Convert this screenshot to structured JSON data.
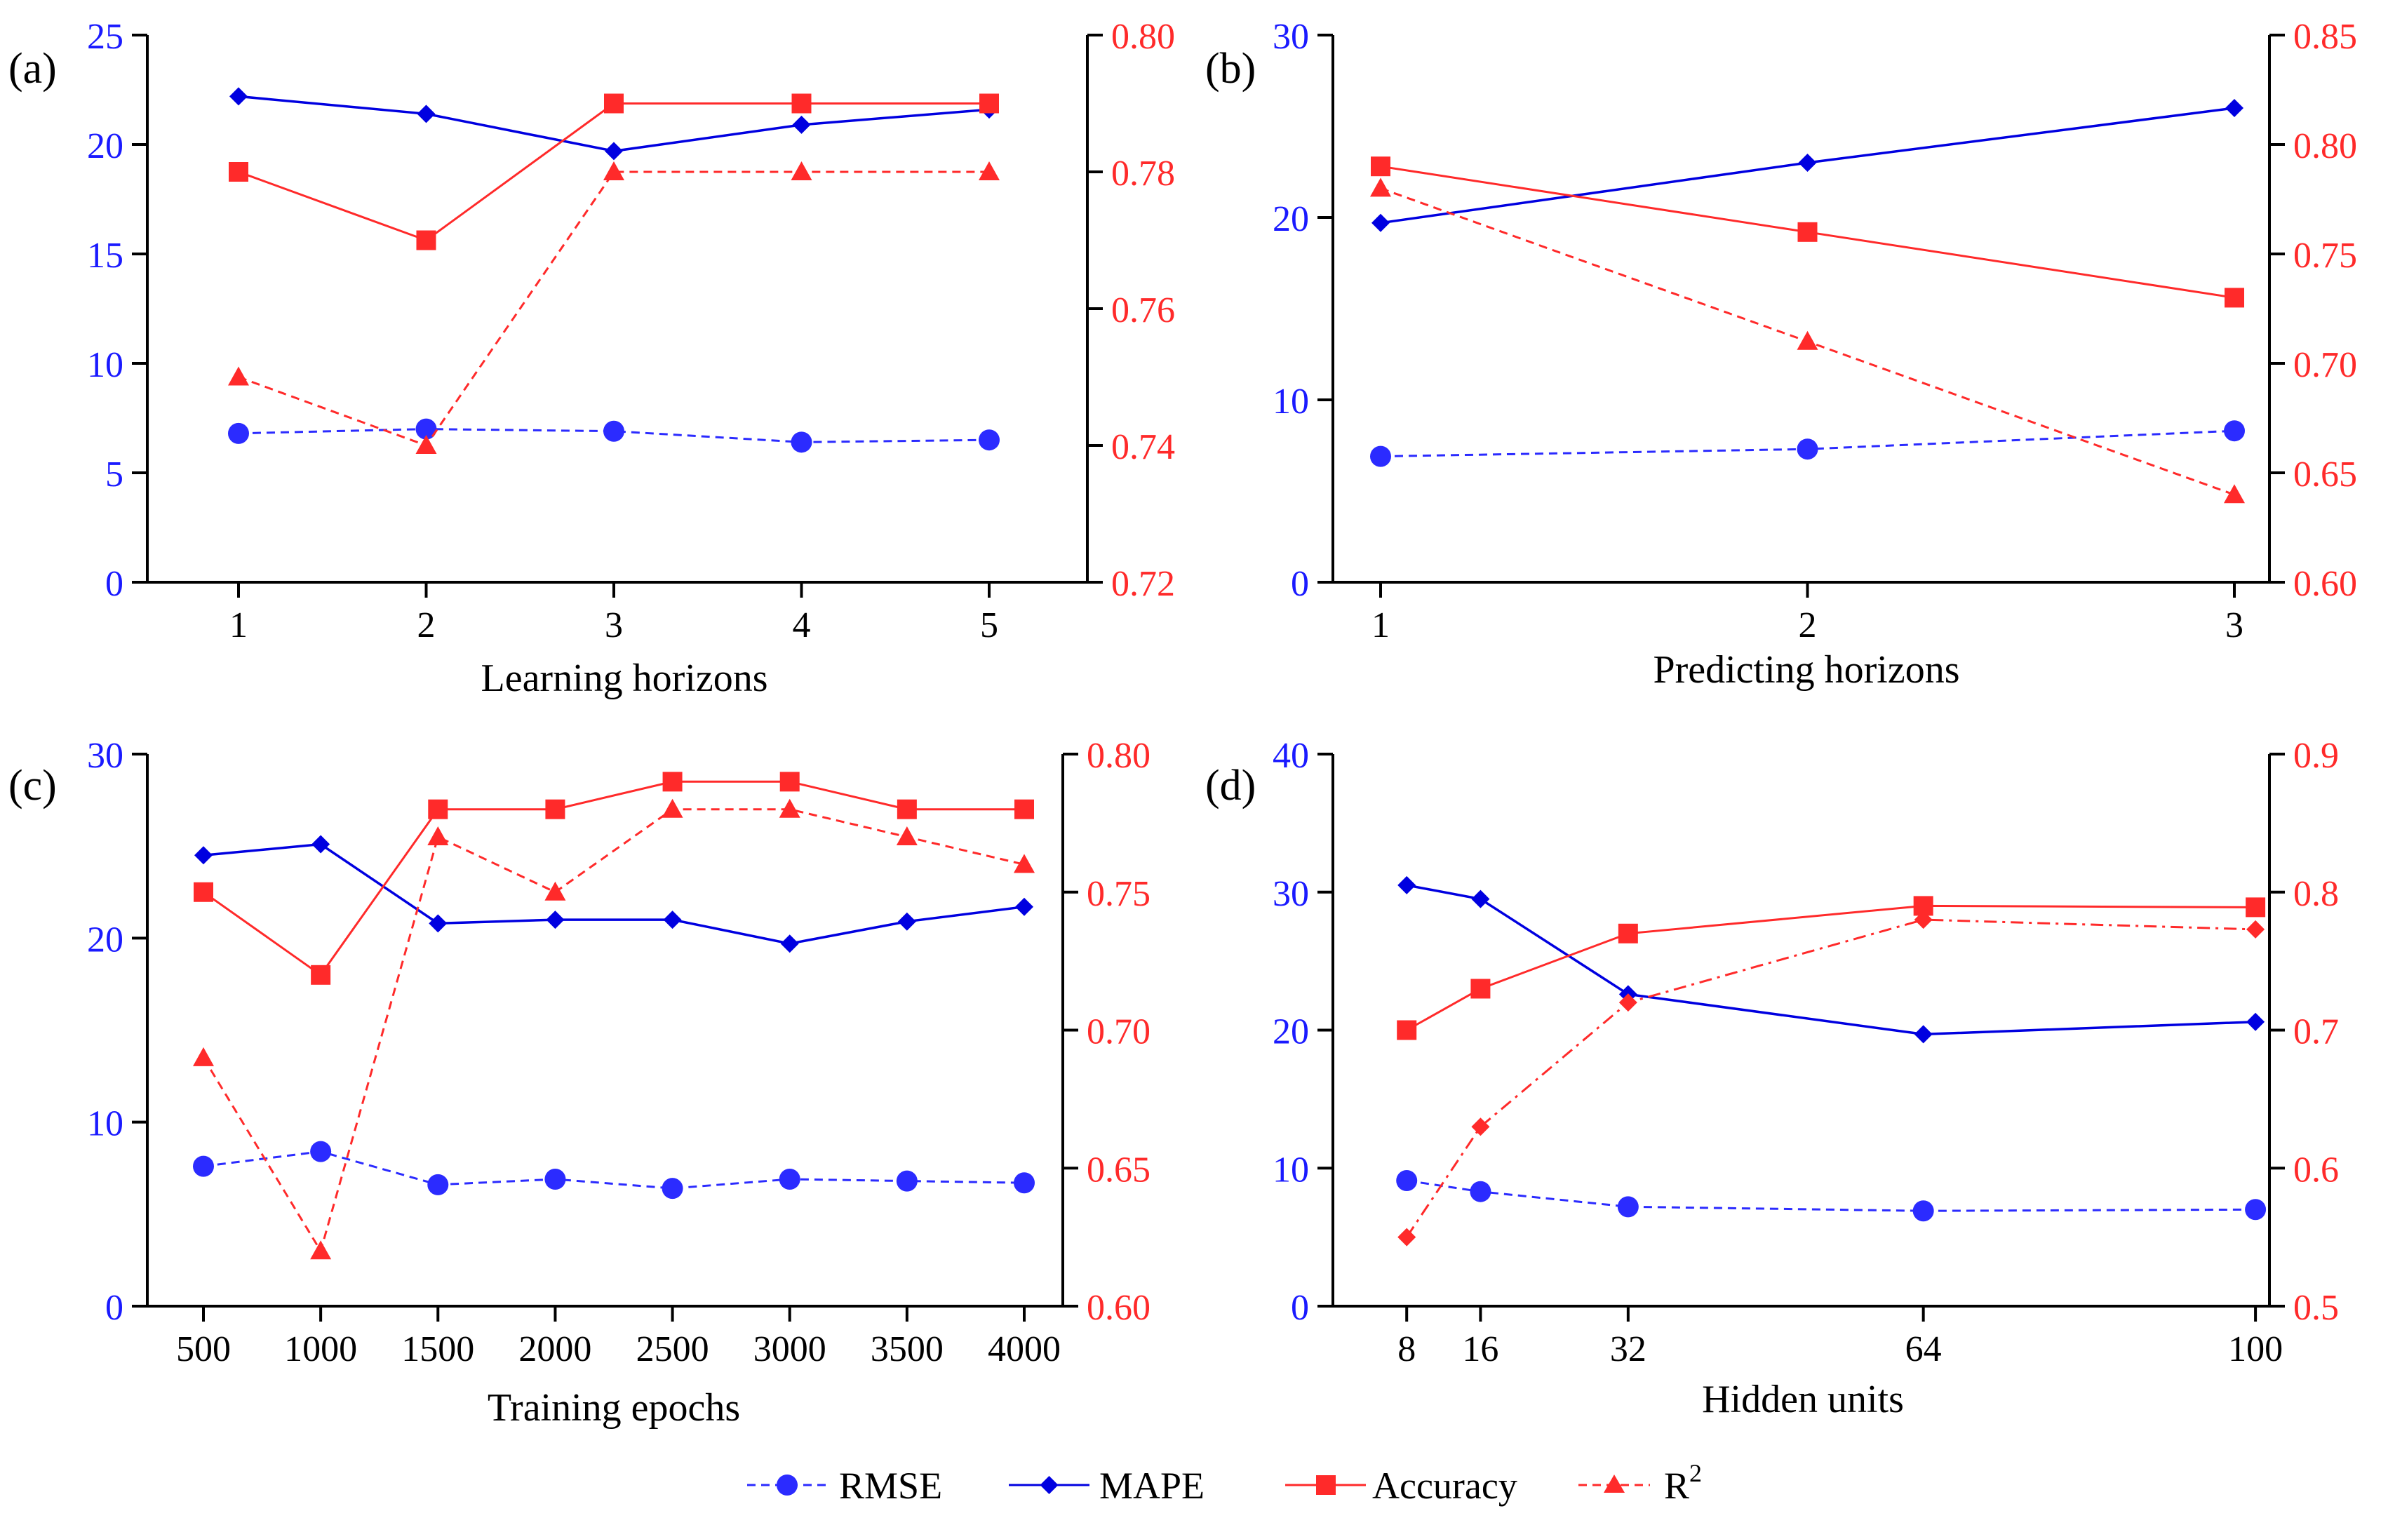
{
  "legend": {
    "items": [
      {
        "label": "RMSE",
        "color": "#2b2bff",
        "marker": "circle",
        "dashed": true
      },
      {
        "label": "MAPE",
        "color": "#0000e0",
        "marker": "diamond",
        "dashed": false
      },
      {
        "label": "Accuracy",
        "color": "#ff2a2a",
        "marker": "square",
        "dashed": false
      },
      {
        "label": "R",
        "sup": "2",
        "color": "#ff2a2a",
        "marker": "triangle",
        "dashed": true
      }
    ]
  },
  "colors": {
    "blue": "#0000e0",
    "blue_light": "#2b2bff",
    "red": "#ff2a2a",
    "axis": "#000000"
  },
  "chart_data": [
    {
      "type": "line",
      "panel_label": "(a)",
      "xlabel": "Learning horizons",
      "x_axis": "categorical",
      "categories": [
        "1",
        "2",
        "3",
        "4",
        "5"
      ],
      "ylim_left": [
        0,
        25
      ],
      "yticks_left": [
        "0",
        "5",
        "10",
        "15",
        "20",
        "25"
      ],
      "ylim_right": [
        0.72,
        0.8
      ],
      "yticks_right": [
        "0.72",
        "0.74",
        "0.76",
        "0.78",
        "0.80"
      ],
      "series": [
        {
          "name": "RMSE",
          "axis": "left",
          "values": [
            6.8,
            7.0,
            6.9,
            6.4,
            6.5
          ]
        },
        {
          "name": "MAPE",
          "axis": "left",
          "values": [
            22.2,
            21.4,
            19.7,
            20.9,
            21.6
          ]
        },
        {
          "name": "Accuracy",
          "axis": "right",
          "values": [
            0.78,
            0.77,
            0.79,
            0.79,
            0.79
          ]
        },
        {
          "name": "R2",
          "axis": "right",
          "values": [
            0.75,
            0.74,
            0.78,
            0.78,
            0.78
          ]
        }
      ]
    },
    {
      "type": "line",
      "panel_label": "(b)",
      "xlabel": "Predicting horizons",
      "x_axis": "categorical",
      "categories": [
        "1",
        "2",
        "3"
      ],
      "ylim_left": [
        0,
        30
      ],
      "yticks_left": [
        "0",
        "10",
        "20",
        "30"
      ],
      "ylim_right": [
        0.6,
        0.85
      ],
      "yticks_right": [
        "0.60",
        "0.65",
        "0.70",
        "0.75",
        "0.80",
        "0.85"
      ],
      "series": [
        {
          "name": "RMSE",
          "axis": "left",
          "values": [
            6.9,
            7.3,
            8.3
          ]
        },
        {
          "name": "MAPE",
          "axis": "left",
          "values": [
            19.7,
            23.0,
            26.0
          ]
        },
        {
          "name": "Accuracy",
          "axis": "right",
          "values": [
            0.79,
            0.76,
            0.73
          ]
        },
        {
          "name": "R2",
          "axis": "right",
          "values": [
            0.78,
            0.71,
            0.64
          ]
        }
      ]
    },
    {
      "type": "line",
      "panel_label": "(c)",
      "xlabel": "Training epochs",
      "x_axis": "categorical",
      "categories": [
        "500",
        "1000",
        "1500",
        "2000",
        "2500",
        "3000",
        "3500",
        "4000"
      ],
      "ylim_left": [
        0,
        30
      ],
      "yticks_left": [
        "0",
        "10",
        "20",
        "30"
      ],
      "ylim_right": [
        0.6,
        0.8
      ],
      "yticks_right": [
        "0.60",
        "0.65",
        "0.70",
        "0.75",
        "0.80"
      ],
      "series": [
        {
          "name": "RMSE",
          "axis": "left",
          "values": [
            7.6,
            8.4,
            6.6,
            6.9,
            6.4,
            6.9,
            6.8,
            6.7
          ]
        },
        {
          "name": "MAPE",
          "axis": "left",
          "values": [
            24.5,
            25.1,
            20.8,
            21.0,
            21.0,
            19.7,
            20.9,
            21.7
          ]
        },
        {
          "name": "Accuracy",
          "axis": "right",
          "values": [
            0.75,
            0.72,
            0.78,
            0.78,
            0.79,
            0.79,
            0.78,
            0.78
          ]
        },
        {
          "name": "R2",
          "axis": "right",
          "values": [
            0.69,
            0.62,
            0.77,
            0.75,
            0.78,
            0.78,
            0.77,
            0.76
          ]
        }
      ]
    },
    {
      "type": "line",
      "panel_label": "(d)",
      "xlabel": "Hidden units",
      "x_axis": "numeric",
      "x": [
        8,
        16,
        32,
        64,
        100
      ],
      "xlim": [
        0,
        106
      ],
      "xticks": [
        "8",
        "16",
        "32",
        "64",
        "100"
      ],
      "ylim_left": [
        0,
        40
      ],
      "yticks_left": [
        "0",
        "10",
        "20",
        "30",
        "40"
      ],
      "ylim_right": [
        0.5,
        0.9
      ],
      "yticks_right": [
        "0.5",
        "0.6",
        "0.7",
        "0.8",
        "0.9"
      ],
      "series": [
        {
          "name": "RMSE",
          "axis": "left",
          "values": [
            9.1,
            8.3,
            7.2,
            6.9,
            7.0
          ]
        },
        {
          "name": "MAPE",
          "axis": "left",
          "values": [
            30.5,
            29.5,
            22.6,
            19.7,
            20.6
          ]
        },
        {
          "name": "Accuracy",
          "axis": "right",
          "values": [
            0.7,
            0.73,
            0.77,
            0.79,
            0.789
          ]
        },
        {
          "name": "R2",
          "axis": "right",
          "marker": "diamond",
          "line": "dashdot",
          "values": [
            0.55,
            0.63,
            0.72,
            0.78,
            0.773
          ]
        }
      ]
    }
  ]
}
